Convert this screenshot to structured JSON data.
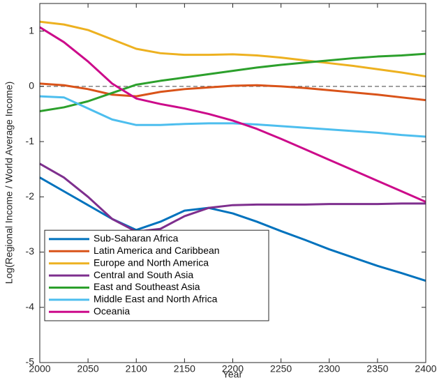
{
  "chart_data": {
    "type": "line",
    "x_label": "Year",
    "y_label": "Log(Regional Income / World Average Income)",
    "x": [
      2000,
      2025,
      2050,
      2075,
      2100,
      2125,
      2150,
      2175,
      2200,
      2225,
      2250,
      2275,
      2300,
      2325,
      2350,
      2375,
      2400
    ],
    "xlim": [
      2000,
      2400
    ],
    "xticks": [
      2000,
      2050,
      2100,
      2150,
      2200,
      2250,
      2300,
      2350,
      2400
    ],
    "ylim": [
      -5,
      1.5
    ],
    "yticks": [
      -5,
      -4,
      -3,
      -2,
      -1,
      0,
      1
    ],
    "hline": 0,
    "legend": "lower left",
    "series": [
      {
        "name": "Sub-Saharan Africa",
        "color": "#0072bd",
        "values": [
          -1.65,
          -1.9,
          -2.15,
          -2.4,
          -2.6,
          -2.45,
          -2.25,
          -2.2,
          -2.3,
          -2.45,
          -2.62,
          -2.78,
          -2.95,
          -3.1,
          -3.25,
          -3.38,
          -3.52
        ]
      },
      {
        "name": "Latin America and Caribbean",
        "color": "#d95319",
        "values": [
          0.05,
          0.02,
          -0.05,
          -0.15,
          -0.18,
          -0.1,
          -0.05,
          -0.02,
          0.01,
          0.02,
          0,
          -0.03,
          -0.07,
          -0.11,
          -0.15,
          -0.2,
          -0.25
        ]
      },
      {
        "name": "Europe and North America",
        "color": "#edb120",
        "values": [
          1.17,
          1.12,
          1.02,
          0.85,
          0.68,
          0.6,
          0.57,
          0.57,
          0.58,
          0.56,
          0.52,
          0.47,
          0.42,
          0.37,
          0.31,
          0.25,
          0.18
        ]
      },
      {
        "name": "Central and South Asia",
        "color": "#7e2f8e",
        "values": [
          -1.4,
          -1.65,
          -2.0,
          -2.4,
          -2.63,
          -2.58,
          -2.35,
          -2.2,
          -2.15,
          -2.14,
          -2.14,
          -2.14,
          -2.13,
          -2.13,
          -2.13,
          -2.12,
          -2.12
        ]
      },
      {
        "name": "East and Southeast Asia",
        "color": "#2ca02c",
        "values": [
          -0.45,
          -0.38,
          -0.27,
          -0.12,
          0.03,
          0.1,
          0.16,
          0.22,
          0.28,
          0.34,
          0.39,
          0.43,
          0.47,
          0.51,
          0.54,
          0.56,
          0.59
        ]
      },
      {
        "name": "Middle East and North Africa",
        "color": "#4dbeee",
        "values": [
          -0.18,
          -0.2,
          -0.4,
          -0.6,
          -0.7,
          -0.7,
          -0.68,
          -0.67,
          -0.67,
          -0.69,
          -0.72,
          -0.75,
          -0.78,
          -0.81,
          -0.84,
          -0.88,
          -0.91
        ]
      },
      {
        "name": "Oceania",
        "color": "#cc0a8a",
        "values": [
          1.07,
          0.8,
          0.45,
          0.05,
          -0.22,
          -0.32,
          -0.4,
          -0.5,
          -0.62,
          -0.77,
          -0.95,
          -1.14,
          -1.33,
          -1.52,
          -1.71,
          -1.9,
          -2.09
        ]
      }
    ]
  }
}
